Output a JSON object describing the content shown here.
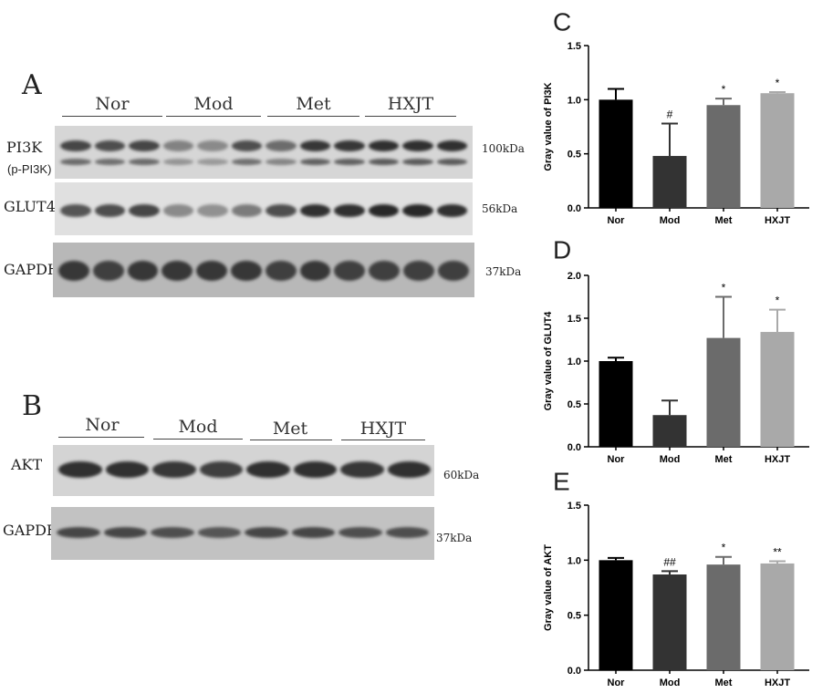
{
  "blots": {
    "A": {
      "letter": "A",
      "groups": [
        "Nor",
        "Mod",
        "Met",
        "HXJT"
      ],
      "rows": [
        {
          "protein": "PI3K",
          "sub": "(p-PI3K)",
          "kda": "100kDa",
          "intensity": [
            0.8,
            0.75,
            0.8,
            0.4,
            0.35,
            0.75,
            0.55,
            0.9,
            0.9,
            0.95,
            0.95,
            0.95
          ]
        },
        {
          "protein": "GLUT4",
          "sub": "",
          "kda": "56kDa",
          "intensity": [
            0.7,
            0.75,
            0.8,
            0.35,
            0.3,
            0.45,
            0.75,
            0.95,
            0.95,
            1.0,
            1.0,
            0.95
          ]
        },
        {
          "protein": "GAPDH",
          "sub": "",
          "kda": "37kDa",
          "intensity": [
            0.9,
            0.85,
            0.9,
            0.9,
            0.9,
            0.9,
            0.85,
            0.9,
            0.85,
            0.85,
            0.85,
            0.85
          ]
        }
      ]
    },
    "B": {
      "letter": "B",
      "groups": [
        "Nor",
        "Mod",
        "Met",
        "HXJT"
      ],
      "rows": [
        {
          "protein": "AKT",
          "sub": "",
          "kda": "60kDa",
          "intensity": [
            0.95,
            0.95,
            0.9,
            0.85,
            0.95,
            0.95,
            0.9,
            0.95
          ]
        },
        {
          "protein": "GAPDH",
          "sub": "",
          "kda": "37kDa",
          "intensity": [
            0.8,
            0.8,
            0.75,
            0.7,
            0.8,
            0.8,
            0.75,
            0.75
          ]
        }
      ]
    }
  },
  "chart_data": [
    {
      "type": "bar",
      "letter": "C",
      "categories": [
        "Nor",
        "Mod",
        "Met",
        "HXJT"
      ],
      "values": [
        1.0,
        0.48,
        0.95,
        1.06
      ],
      "errors": [
        0.1,
        0.3,
        0.06,
        0.01
      ],
      "annotations": [
        "",
        "#",
        "*",
        "*"
      ],
      "ylabel": "Gray value of PI3K",
      "ylim": [
        0,
        1.5
      ],
      "yticks": [
        "0.0",
        "0.5",
        "1.0",
        "1.5"
      ],
      "colors": [
        "#000000",
        "#333333",
        "#6b6b6b",
        "#a9a9a9"
      ]
    },
    {
      "type": "bar",
      "letter": "D",
      "categories": [
        "Nor",
        "Mod",
        "Met",
        "HXJT"
      ],
      "values": [
        1.0,
        0.37,
        1.27,
        1.34
      ],
      "errors": [
        0.04,
        0.17,
        0.48,
        0.26
      ],
      "annotations": [
        "",
        "",
        "*",
        "*"
      ],
      "ylabel": "Gray value of GLUT4",
      "ylim": [
        0,
        2.0
      ],
      "yticks": [
        "0.0",
        "0.5",
        "1.0",
        "1.5",
        "2.0"
      ],
      "colors": [
        "#000000",
        "#333333",
        "#6b6b6b",
        "#a9a9a9"
      ]
    },
    {
      "type": "bar",
      "letter": "E",
      "categories": [
        "Nor",
        "Mod",
        "Met",
        "HXJT"
      ],
      "values": [
        1.0,
        0.87,
        0.96,
        0.97
      ],
      "errors": [
        0.02,
        0.03,
        0.07,
        0.02
      ],
      "annotations": [
        "",
        "##",
        "*",
        "**"
      ],
      "ylabel": "Gray value of AKT",
      "ylim": [
        0,
        1.5
      ],
      "yticks": [
        "0.0",
        "0.5",
        "1.0",
        "1.5"
      ],
      "colors": [
        "#000000",
        "#333333",
        "#6b6b6b",
        "#a9a9a9"
      ]
    }
  ]
}
